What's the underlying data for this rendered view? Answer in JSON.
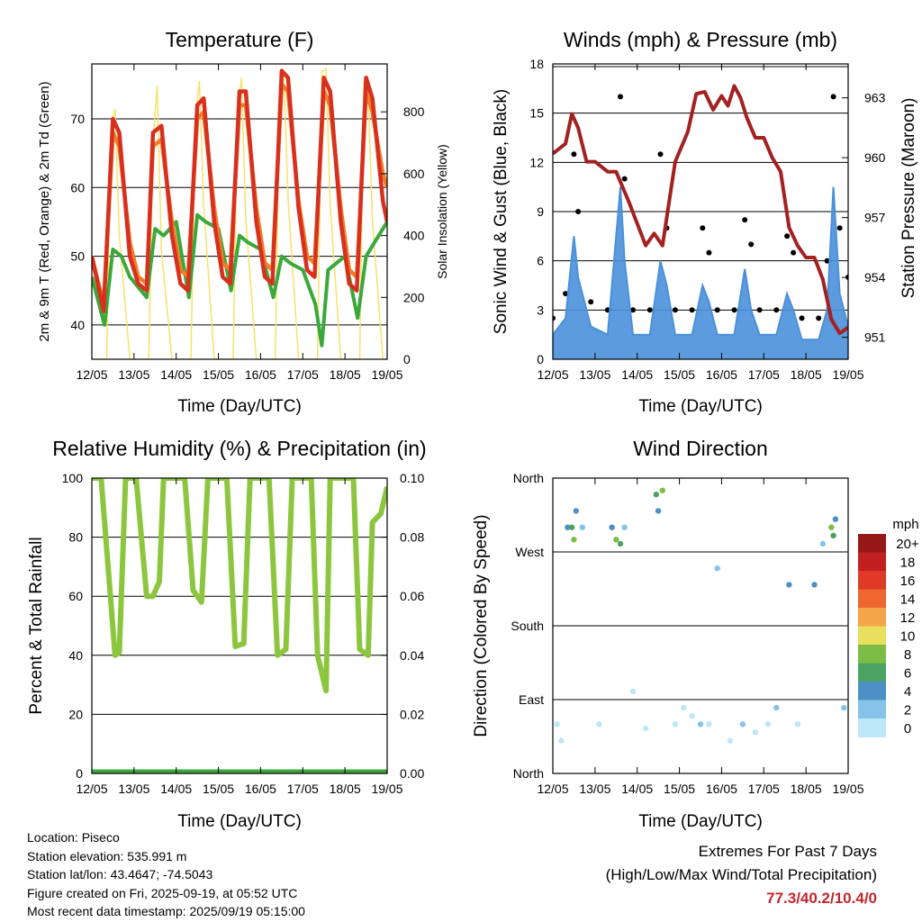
{
  "days": [
    "12/05",
    "13/05",
    "14/05",
    "15/05",
    "16/05",
    "17/05",
    "18/05",
    "19/05"
  ],
  "xlabel": "Time (Day/UTC)",
  "colors": {
    "temp_2m": "#d7301f",
    "temp_9m": "#f07d28",
    "dewpoint": "#3aa83a",
    "solar": "#f7e26b",
    "sonic_wind": "#4a90d9",
    "gust": "#000000",
    "pressure": "#a32121",
    "rh": "#8cc63f",
    "precip": "#3aa83a",
    "extremes": "#c1272d"
  },
  "temperature": {
    "title": "Temperature (F)",
    "ylabel_left": "2m & 9m T (Red, Orange) & 2m Td (Green)",
    "ylabel_right": "Solar Insolation (Yellow)",
    "yticks": [
      "40",
      "50",
      "60",
      "70"
    ],
    "y2ticks": [
      "0",
      "200",
      "400",
      "600",
      "800"
    ]
  },
  "winds": {
    "title": "Winds (mph) & Pressure (mb)",
    "ylabel_left": "Sonic Wind & Gust (Blue, Black)",
    "ylabel_right": "Station Pressure (Maroon)",
    "yticks": [
      "0",
      "3",
      "6",
      "9",
      "12",
      "15",
      "18"
    ],
    "y2ticks": [
      "951",
      "954",
      "957",
      "960",
      "963"
    ]
  },
  "humidity": {
    "title": "Relative Humidity (%) & Precipitation (in)",
    "ylabel_left": "Percent & Total Rainfall",
    "yticks": [
      "0",
      "20",
      "40",
      "60",
      "80",
      "100"
    ],
    "y2ticks": [
      "0.00",
      "0.02",
      "0.04",
      "0.06",
      "0.08",
      "0.10"
    ]
  },
  "direction": {
    "title": "Wind Direction",
    "ylabel_left": "Direction (Colored By Speed)",
    "yticks": [
      "North",
      "East",
      "South",
      "West",
      "North"
    ],
    "legend_title": "mph",
    "legend_labels": [
      "0",
      "2",
      "4",
      "6",
      "8",
      "10",
      "12",
      "14",
      "16",
      "18",
      "20+"
    ],
    "legend_colors": [
      "#bde6f7",
      "#85c3e8",
      "#4d8fc7",
      "#4aa361",
      "#7dbd45",
      "#e8e05a",
      "#f5a54a",
      "#ee6630",
      "#e03a26",
      "#c0201f",
      "#96181b"
    ]
  },
  "chart_data": [
    {
      "type": "line",
      "title": "Temperature (F)",
      "xlabel": "Time (Day/UTC)",
      "ylabel": "2m & 9m T (Red, Orange) & 2m Td (Green)",
      "y2label": "Solar Insolation (Yellow)",
      "ylim": [
        35,
        78
      ],
      "y2lim": [
        0,
        955
      ],
      "x_days": [
        0,
        1,
        2,
        3,
        4,
        5,
        6,
        7
      ],
      "series": [
        {
          "name": "2m T",
          "x": [
            0,
            0.28,
            0.5,
            0.65,
            0.9,
            1.1,
            1.3,
            1.45,
            1.65,
            1.9,
            2.1,
            2.28,
            2.5,
            2.65,
            2.9,
            3.1,
            3.28,
            3.5,
            3.65,
            3.9,
            4.1,
            4.28,
            4.5,
            4.65,
            4.9,
            5.1,
            5.28,
            5.5,
            5.65,
            5.9,
            6.1,
            6.28,
            6.5,
            6.65,
            6.9,
            7.0
          ],
          "y": [
            50,
            42,
            70,
            68,
            50,
            46,
            45,
            68,
            69,
            53,
            46,
            45,
            72,
            73,
            55,
            47,
            46,
            74,
            74,
            55,
            47,
            46,
            77,
            76,
            57,
            48,
            47,
            76,
            74,
            55,
            46,
            45,
            76,
            73,
            58,
            55
          ]
        },
        {
          "name": "9m T",
          "x": [
            0,
            0.28,
            0.5,
            0.65,
            0.9,
            1.1,
            1.3,
            1.45,
            1.65,
            1.9,
            2.1,
            2.28,
            2.5,
            2.65,
            2.9,
            3.1,
            3.28,
            3.5,
            3.65,
            3.9,
            4.1,
            4.28,
            4.5,
            4.65,
            4.9,
            5.1,
            5.28,
            5.5,
            5.65,
            5.9,
            6.1,
            6.28,
            6.5,
            6.65,
            6.9,
            7.0
          ],
          "y": [
            50,
            43,
            68,
            66,
            52,
            47,
            46,
            66,
            67,
            55,
            48,
            47,
            70,
            71,
            57,
            49,
            48,
            72,
            72,
            57,
            49,
            48,
            75,
            74,
            58,
            50,
            49,
            74,
            72,
            57,
            48,
            47,
            74,
            71,
            62,
            60
          ]
        },
        {
          "name": "2m Td",
          "x": [
            0,
            0.3,
            0.5,
            0.7,
            0.9,
            1.3,
            1.5,
            1.7,
            2.0,
            2.3,
            2.5,
            2.7,
            3.0,
            3.3,
            3.5,
            3.7,
            4.0,
            4.3,
            4.5,
            4.7,
            5.0,
            5.3,
            5.45,
            5.6,
            6.0,
            6.3,
            6.5,
            6.7,
            7.0
          ],
          "y": [
            47,
            40,
            51,
            50,
            47,
            44,
            54,
            53,
            55,
            44,
            56,
            55,
            54,
            45,
            53,
            52,
            51,
            44,
            50,
            49,
            48,
            43,
            37,
            48,
            50,
            41,
            50,
            52,
            55
          ]
        },
        {
          "name": "Solar Insolation",
          "axis": "y2",
          "x": [
            0,
            0.35,
            0.45,
            0.55,
            0.65,
            0.9,
            1.35,
            1.45,
            1.55,
            1.65,
            1.9,
            2.35,
            2.45,
            2.55,
            2.65,
            2.9,
            3.35,
            3.45,
            3.55,
            3.65,
            3.9,
            4.35,
            4.45,
            4.55,
            4.65,
            4.9,
            5.35,
            5.45,
            5.55,
            5.65,
            5.9,
            6.35,
            6.45,
            6.55,
            6.65,
            6.9
          ],
          "y": [
            0,
            0,
            750,
            810,
            400,
            0,
            0,
            700,
            885,
            350,
            0,
            0,
            780,
            900,
            500,
            0,
            0,
            820,
            910,
            450,
            0,
            0,
            860,
            920,
            520,
            0,
            0,
            930,
            940,
            500,
            0,
            0,
            900,
            860,
            450,
            0
          ]
        }
      ]
    },
    {
      "type": "line",
      "title": "Winds (mph) & Pressure (mb)",
      "xlabel": "Time (Day/UTC)",
      "ylabel": "Sonic Wind & Gust (Blue, Black)",
      "y2label": "Station Pressure (Maroon)",
      "ylim": [
        0,
        18
      ],
      "y2lim": [
        949.9,
        964.7
      ],
      "series": [
        {
          "name": "Sonic Wind",
          "x": [
            0,
            0.3,
            0.5,
            0.6,
            0.9,
            1.3,
            1.6,
            1.7,
            1.9,
            2.3,
            2.55,
            2.7,
            2.9,
            3.3,
            3.55,
            3.7,
            3.9,
            4.3,
            4.55,
            4.7,
            4.9,
            5.3,
            5.55,
            5.7,
            5.9,
            6.3,
            6.5,
            6.65,
            6.8,
            7.0
          ],
          "y": [
            1.5,
            2.5,
            7.5,
            5.0,
            2.0,
            1.5,
            10.5,
            6.0,
            1.5,
            1.5,
            6.0,
            4.5,
            1.5,
            1.5,
            4.5,
            3.5,
            1.5,
            1.5,
            5.5,
            3.0,
            1.5,
            1.5,
            4.0,
            3.0,
            1.2,
            1.2,
            3.0,
            10.5,
            4.0,
            2.0
          ]
        },
        {
          "name": "Gust",
          "x": [
            0,
            0.3,
            0.5,
            0.6,
            0.9,
            1.3,
            1.6,
            1.7,
            1.9,
            2.3,
            2.55,
            2.7,
            2.9,
            3.3,
            3.55,
            3.7,
            3.9,
            4.3,
            4.55,
            4.7,
            4.9,
            5.3,
            5.55,
            5.7,
            5.9,
            6.3,
            6.5,
            6.65,
            6.8,
            7.0
          ],
          "y": [
            2.5,
            4.0,
            12.5,
            9.0,
            3.5,
            3.0,
            16.0,
            11.0,
            3.0,
            3.0,
            12.5,
            8.0,
            3.0,
            3.0,
            8.0,
            6.5,
            3.0,
            3.0,
            8.5,
            7.0,
            3.0,
            3.0,
            7.5,
            6.5,
            2.5,
            2.5,
            6.0,
            16.0,
            8.0,
            5.0
          ]
        },
        {
          "name": "Station Pressure",
          "axis": "y2",
          "x": [
            0,
            0.3,
            0.45,
            0.6,
            0.8,
            1.0,
            1.3,
            1.5,
            1.8,
            2.0,
            2.2,
            2.4,
            2.6,
            2.9,
            3.2,
            3.4,
            3.6,
            3.8,
            4.0,
            4.15,
            4.3,
            4.45,
            4.6,
            4.8,
            5.0,
            5.2,
            5.4,
            5.6,
            5.8,
            6.0,
            6.2,
            6.4,
            6.6,
            6.8,
            7.0
          ],
          "y": [
            960.2,
            960.7,
            962.2,
            961.5,
            959.8,
            959.8,
            959.3,
            959.3,
            957.8,
            956.7,
            955.6,
            956.2,
            955.6,
            959.8,
            961.3,
            963.2,
            963.3,
            962.4,
            963.1,
            962.6,
            963.6,
            963.0,
            962.0,
            961.0,
            961.0,
            960.0,
            959.3,
            956.5,
            955.6,
            955.0,
            955.0,
            953.9,
            951.9,
            951.2,
            951.5
          ]
        }
      ]
    },
    {
      "type": "line",
      "title": "Relative Humidity (%) & Precipitation (in)",
      "xlabel": "Time (Day/UTC)",
      "ylabel": "Percent & Total Rainfall",
      "ylim": [
        0,
        100
      ],
      "y2lim": [
        0,
        0.1
      ],
      "series": [
        {
          "name": "Relative Humidity",
          "x": [
            0,
            0.18,
            0.22,
            0.55,
            0.65,
            0.8,
            1.05,
            1.3,
            1.45,
            1.6,
            1.7,
            1.95,
            2.2,
            2.4,
            2.6,
            2.75,
            2.9,
            3.2,
            3.4,
            3.6,
            3.75,
            3.9,
            4.2,
            4.4,
            4.6,
            4.75,
            4.9,
            5.2,
            5.35,
            5.55,
            5.65,
            5.8,
            6.2,
            6.35,
            6.55,
            6.65,
            6.85,
            7.0
          ],
          "y": [
            100,
            100,
            100,
            40,
            41,
            100,
            100,
            60,
            60,
            65,
            100,
            100,
            100,
            62,
            58,
            100,
            100,
            100,
            43,
            44,
            100,
            100,
            100,
            40,
            42,
            100,
            100,
            100,
            40,
            28,
            100,
            100,
            100,
            42,
            40,
            85,
            88,
            97
          ]
        },
        {
          "name": "Total Precipitation",
          "axis": "y2",
          "x": [
            0,
            7
          ],
          "y": [
            0,
            0
          ]
        }
      ]
    },
    {
      "type": "scatter",
      "title": "Wind Direction",
      "xlabel": "Time (Day/UTC)",
      "ylabel": "Direction (Colored By Speed)",
      "ylim": [
        0,
        360
      ],
      "series": [
        {
          "name": "Wind Direction",
          "x": [
            0.1,
            0.2,
            0.35,
            0.45,
            0.5,
            0.55,
            0.7,
            1.1,
            1.4,
            1.5,
            1.6,
            1.7,
            1.9,
            2.2,
            2.45,
            2.5,
            2.6,
            2.9,
            3.1,
            3.3,
            3.5,
            3.7,
            3.9,
            4.2,
            4.5,
            4.8,
            5.1,
            5.3,
            5.6,
            5.8,
            6.2,
            6.4,
            6.6,
            6.65,
            6.7,
            6.9
          ],
          "y": [
            60,
            40,
            300,
            300,
            285,
            320,
            300,
            60,
            300,
            285,
            280,
            300,
            100,
            55,
            340,
            320,
            345,
            60,
            80,
            70,
            60,
            60,
            250,
            40,
            60,
            50,
            60,
            80,
            230,
            60,
            230,
            280,
            300,
            290,
            310,
            80
          ],
          "speeds": [
            1,
            1,
            4,
            6,
            8,
            5,
            2,
            1,
            4,
            8,
            6,
            3,
            1,
            1,
            6,
            4,
            8,
            1,
            1,
            1,
            2,
            1,
            3,
            1,
            2,
            1,
            1,
            2,
            4,
            1,
            4,
            3,
            8,
            6,
            4,
            2
          ]
        }
      ]
    }
  ],
  "info": {
    "location": "Location: Piseco",
    "elevation": "Station elevation: 535.991 m",
    "latlon": "Station lat/lon: 43.4647; -74.5043",
    "created": "Figure created on Fri, 2025-09-19, at 05:52 UTC",
    "recent": "Most recent data timestamp: 2025/09/19 05:15:00"
  },
  "extremes": {
    "heading": "Extremes For Past 7 Days",
    "subheading": "(High/Low/Max Wind/Total Precipitation)",
    "values": "77.3/40.2/10.4/0"
  }
}
